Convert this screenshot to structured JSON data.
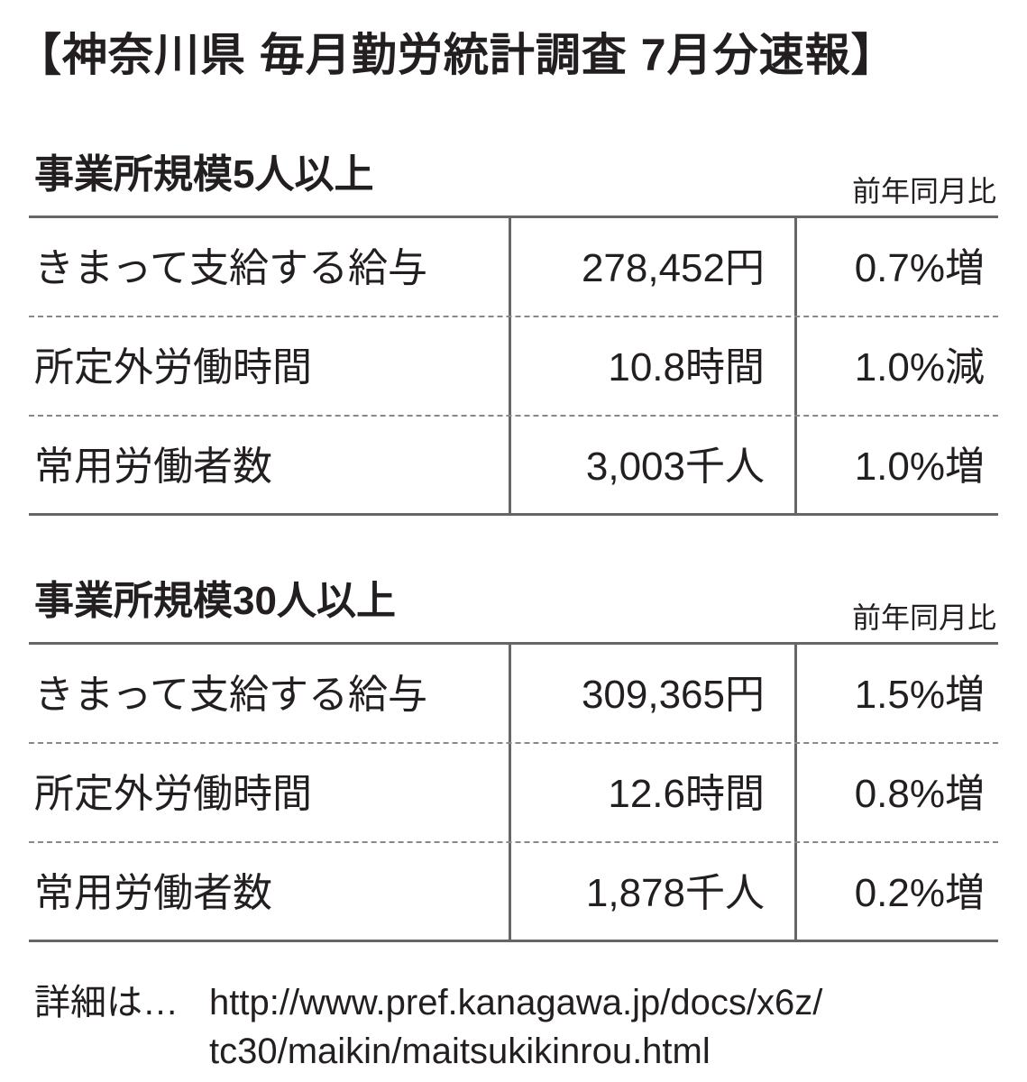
{
  "title": "【神奈川県 毎月勤労統計調査 7月分速報】",
  "sections": [
    {
      "heading": "事業所規模5人以上",
      "column_note": "前年同月比",
      "rows": [
        [
          "きまって支給する給与",
          "278,452円",
          "0.7%増"
        ],
        [
          "所定外労働時間",
          "10.8時間",
          "1.0%減"
        ],
        [
          "常用労働者数",
          "3,003千人",
          "1.0%増"
        ]
      ]
    },
    {
      "heading": "事業所規模30人以上",
      "column_note": "前年同月比",
      "rows": [
        [
          "きまって支給する給与",
          "309,365円",
          "1.5%増"
        ],
        [
          "所定外労働時間",
          "12.6時間",
          "0.8%増"
        ],
        [
          "常用労働者数",
          "1,878千人",
          "0.2%増"
        ]
      ]
    }
  ],
  "footer": {
    "label": "詳細は…",
    "url_lines": [
      "http://www.pref.kanagawa.jp/docs/x6z/",
      "tc30/maikin/maitsukikinrou.html"
    ]
  }
}
